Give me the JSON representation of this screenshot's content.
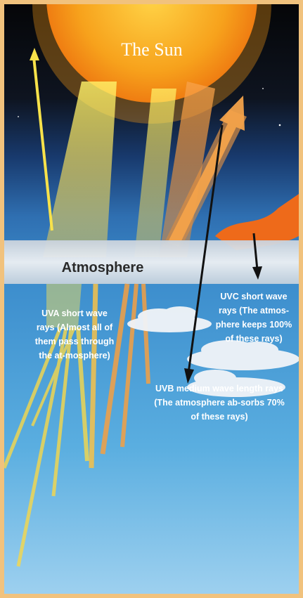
{
  "sun": {
    "title": "The Sun"
  },
  "atmosphere": {
    "label": "Atmosphere"
  },
  "uva": {
    "label": "UVA short wave rays (Almost all of them pass through the at-mosphere)"
  },
  "uvb": {
    "label": "UVB medium wave length rays (The atmosphere ab-sorbs 70% of these rays)"
  },
  "uvc": {
    "label": "UVC short wave rays (The atmos-phere keeps 100% of these rays)"
  },
  "colors": {
    "sky_top": "#0b0d14",
    "sky_mid": "#1d3f7a",
    "sky_low": "#4fa3d9",
    "sun": "#f6a51a",
    "ray_yellow": "#f7e04a",
    "ray_orange": "#f18a2b",
    "atmosphere_band": "#dfe4ea",
    "frame": "#f1c27d"
  }
}
